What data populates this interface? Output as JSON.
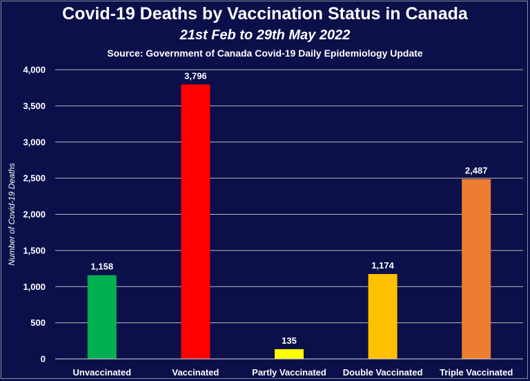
{
  "chart_data": {
    "type": "bar",
    "title": "Covid-19 Deaths by Vaccination Status in Canada",
    "subtitle": "21st Feb to 29th May 2022",
    "source": "Source: Government of Canada Covid-19 Daily Epidemiology Update",
    "xlabel": "",
    "ylabel": "Number of Covid-19 Deaths",
    "categories": [
      "Unvaccinated",
      "Vaccinated",
      "Partly Vaccinated",
      "Double Vaccinated",
      "Triple Vaccinated"
    ],
    "values": [
      1158,
      3796,
      135,
      1174,
      2487
    ],
    "value_labels": [
      "1,158",
      "3,796",
      "135",
      "1,174",
      "2,487"
    ],
    "colors": [
      "#00b050",
      "#ff0000",
      "#ffff00",
      "#ffc000",
      "#ed7d31"
    ],
    "ylim": [
      0,
      4000
    ],
    "yticks": [
      0,
      500,
      1000,
      1500,
      2000,
      2500,
      3000,
      3500,
      4000
    ],
    "ytick_labels": [
      "0",
      "500",
      "1,000",
      "1,500",
      "2,000",
      "2,500",
      "3,000",
      "3,500",
      "4,000"
    ],
    "grid": true,
    "background": "#0b0f4a"
  }
}
